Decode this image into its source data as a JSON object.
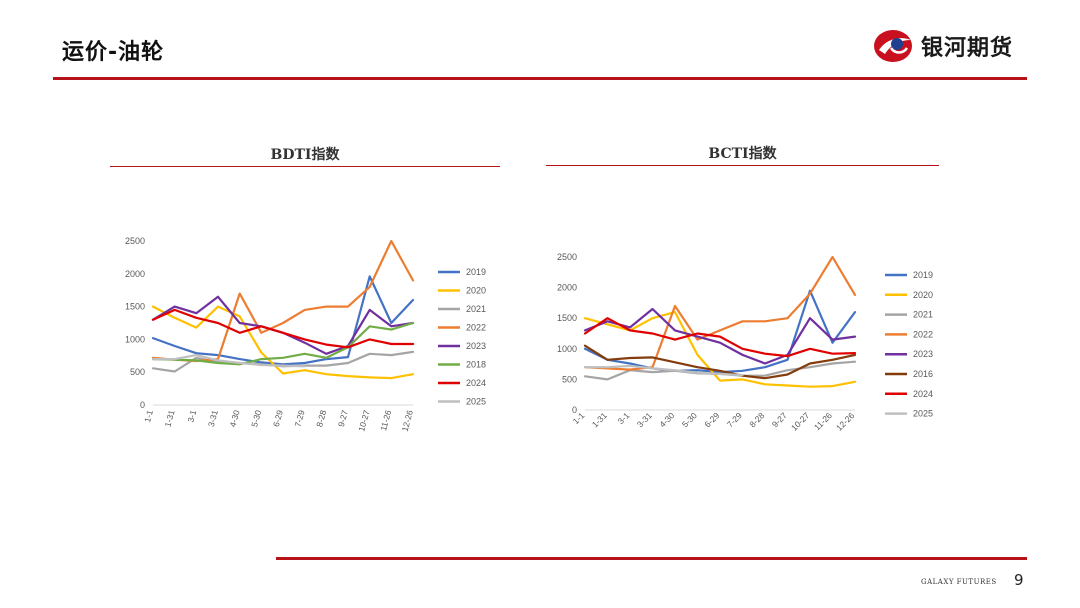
{
  "header": {
    "title": "运价-油轮",
    "brand_name": "银河期货"
  },
  "footer": {
    "brand": "GALAXY FUTURES",
    "page_number": "9"
  },
  "colors": {
    "accent": "#b8121b"
  },
  "chart_data": [
    {
      "type": "line",
      "title": "BDTI指数",
      "xlabel": "",
      "ylabel": "",
      "ylim": [
        0,
        2500
      ],
      "yticks": [
        0,
        500,
        1000,
        1500,
        2000,
        2500
      ],
      "xtick_labels": [
        "1-1",
        "1-31",
        "3-1",
        "3-31",
        "4-30",
        "5-30",
        "6-29",
        "7-29",
        "8-28",
        "9-27",
        "10-27",
        "11-26",
        "12-26"
      ],
      "legend_position": "right",
      "series": [
        {
          "name": "2019",
          "color": "#4472c4",
          "values": [
            1020,
            900,
            790,
            760,
            700,
            650,
            620,
            640,
            700,
            730,
            1960,
            1250,
            1600
          ]
        },
        {
          "name": "2020",
          "color": "#ffc000",
          "values": [
            1500,
            1330,
            1180,
            1500,
            1350,
            800,
            480,
            530,
            470,
            440,
            420,
            410,
            470
          ]
        },
        {
          "name": "2021",
          "color": "#a5a5a5",
          "values": [
            560,
            510,
            720,
            650,
            640,
            620,
            590,
            600,
            600,
            640,
            780,
            760,
            810
          ]
        },
        {
          "name": "2022",
          "color": "#ed7d31",
          "values": [
            720,
            690,
            670,
            700,
            1700,
            1100,
            1250,
            1450,
            1500,
            1500,
            1800,
            2500,
            1900
          ]
        },
        {
          "name": "2023",
          "color": "#7030a0",
          "values": [
            1300,
            1500,
            1400,
            1650,
            1250,
            1200,
            1100,
            950,
            780,
            900,
            1450,
            1200,
            1250
          ]
        },
        {
          "name": "2018",
          "color": "#70ad47",
          "values": [
            700,
            690,
            680,
            640,
            620,
            700,
            720,
            780,
            720,
            880,
            1200,
            1150,
            1250
          ]
        },
        {
          "name": "2024",
          "color": "#e00000",
          "values": [
            1300,
            1450,
            1330,
            1250,
            1100,
            1200,
            1100,
            1000,
            920,
            880,
            1000,
            930,
            930
          ]
        },
        {
          "name": "2025",
          "color": "#bfbfbf",
          "values": [
            700,
            700,
            760,
            680,
            640,
            610,
            600,
            590,
            null,
            null,
            null,
            null,
            null
          ]
        }
      ]
    },
    {
      "type": "line",
      "title": "BCTI指数",
      "xlabel": "",
      "ylabel": "",
      "ylim": [
        0,
        2500
      ],
      "yticks": [
        0,
        500,
        1000,
        1500,
        2000,
        2500
      ],
      "xtick_labels": [
        "1-1",
        "1-31",
        "3-1",
        "3-31",
        "4-30",
        "5-30",
        "6-29",
        "7-29",
        "8-28",
        "9-27",
        "10-27",
        "11-26",
        "12-26"
      ],
      "legend_position": "right",
      "series": [
        {
          "name": "2019",
          "color": "#4472c4",
          "values": [
            1000,
            820,
            760,
            680,
            640,
            650,
            620,
            640,
            700,
            820,
            1950,
            1100,
            1600
          ]
        },
        {
          "name": "2020",
          "color": "#ffc000",
          "values": [
            1500,
            1400,
            1300,
            1500,
            1600,
            900,
            480,
            500,
            420,
            400,
            380,
            390,
            460
          ]
        },
        {
          "name": "2021",
          "color": "#a5a5a5",
          "values": [
            550,
            500,
            650,
            620,
            640,
            600,
            590,
            560,
            560,
            650,
            700,
            760,
            790
          ]
        },
        {
          "name": "2022",
          "color": "#ed7d31",
          "values": [
            700,
            680,
            660,
            700,
            1700,
            1150,
            1300,
            1450,
            1450,
            1500,
            1900,
            2500,
            1880
          ]
        },
        {
          "name": "2023",
          "color": "#7030a0",
          "values": [
            1300,
            1450,
            1350,
            1650,
            1300,
            1200,
            1100,
            900,
            760,
            900,
            1500,
            1150,
            1200
          ]
        },
        {
          "name": "2016",
          "color": "#843c0c",
          "values": [
            1050,
            820,
            850,
            860,
            780,
            700,
            640,
            560,
            520,
            580,
            760,
            820,
            900
          ]
        },
        {
          "name": "2024",
          "color": "#e00000",
          "values": [
            1250,
            1500,
            1300,
            1250,
            1150,
            1250,
            1200,
            1000,
            920,
            880,
            1000,
            920,
            930
          ]
        },
        {
          "name": "2025",
          "color": "#bfbfbf",
          "values": [
            700,
            700,
            720,
            680,
            650,
            610,
            590,
            570,
            null,
            null,
            null,
            null,
            null
          ]
        }
      ]
    }
  ]
}
